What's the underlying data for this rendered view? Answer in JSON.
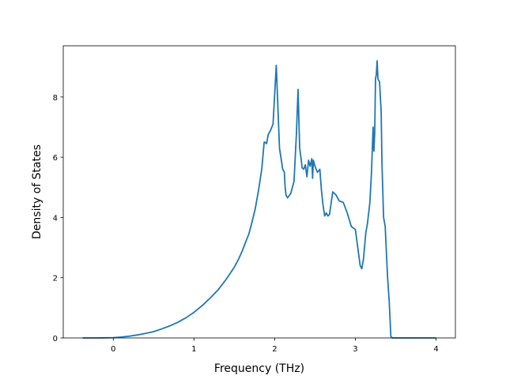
{
  "chart_data": {
    "type": "line",
    "xlabel": "Frequency (THz)",
    "ylabel": "Density of States",
    "xlim": [
      -0.62,
      4.24
    ],
    "ylim": [
      0,
      9.7
    ],
    "xticks": [
      0,
      1,
      2,
      3,
      4
    ],
    "yticks": [
      0,
      2,
      4,
      6,
      8
    ],
    "xtick_labels": [
      "0",
      "1",
      "2",
      "3",
      "4"
    ],
    "ytick_labels": [
      "0",
      "2",
      "4",
      "6",
      "8"
    ],
    "grid": false,
    "line_color": "#1f77b4",
    "series": [
      {
        "x": [
          -0.38,
          -0.2,
          0.0,
          0.1,
          0.2,
          0.3,
          0.4,
          0.5,
          0.6,
          0.7,
          0.8,
          0.9,
          1.0,
          1.1,
          1.2,
          1.3,
          1.4,
          1.5,
          1.55,
          1.6,
          1.65,
          1.68,
          1.72,
          1.76,
          1.8,
          1.84,
          1.86,
          1.87,
          1.88,
          1.9,
          1.92,
          1.95,
          1.98,
          2.02,
          2.06,
          2.1,
          2.12,
          2.13,
          2.14,
          2.16,
          2.2,
          2.24,
          2.27,
          2.29,
          2.31,
          2.33,
          2.34,
          2.36,
          2.38,
          2.4,
          2.42,
          2.44,
          2.46,
          2.47,
          2.48,
          2.5,
          2.53,
          2.56,
          2.58,
          2.6,
          2.62,
          2.64,
          2.66,
          2.68,
          2.72,
          2.76,
          2.8,
          2.85,
          2.9,
          2.95,
          3.0,
          3.03,
          3.06,
          3.08,
          3.1,
          3.13,
          3.15,
          3.18,
          3.2,
          3.22,
          3.23,
          3.24,
          3.25,
          3.26,
          3.27,
          3.28,
          3.3,
          3.32,
          3.33,
          3.34,
          3.35,
          3.37,
          3.38,
          3.4,
          3.42,
          3.44,
          3.46,
          3.48,
          3.5,
          3.52,
          3.55,
          3.58,
          3.6,
          3.62,
          3.64,
          3.66,
          3.7,
          4.0
        ],
        "y": [
          0.0,
          0.0,
          0.01,
          0.03,
          0.06,
          0.1,
          0.15,
          0.21,
          0.3,
          0.4,
          0.52,
          0.67,
          0.85,
          1.07,
          1.32,
          1.6,
          1.95,
          2.35,
          2.6,
          2.9,
          3.25,
          3.45,
          3.85,
          4.3,
          4.9,
          5.6,
          6.2,
          6.5,
          6.5,
          6.45,
          6.75,
          6.9,
          7.1,
          9.05,
          6.3,
          5.6,
          5.5,
          5.0,
          4.75,
          4.65,
          4.8,
          5.2,
          6.8,
          8.25,
          6.3,
          5.9,
          5.65,
          5.6,
          5.75,
          5.35,
          5.9,
          5.7,
          5.95,
          5.3,
          5.9,
          5.7,
          5.5,
          5.6,
          4.9,
          4.4,
          4.05,
          4.15,
          4.05,
          4.1,
          4.85,
          4.75,
          4.55,
          4.5,
          4.15,
          3.7,
          3.6,
          3.0,
          2.4,
          2.3,
          2.6,
          3.5,
          3.8,
          4.5,
          5.5,
          7.0,
          6.2,
          6.8,
          8.6,
          8.75,
          9.2,
          8.6,
          8.5,
          7.5,
          5.8,
          4.9,
          4.0,
          3.7,
          3.1,
          2.0,
          1.2,
          0.05,
          0.0,
          0.0,
          0.0,
          0.0,
          0.0,
          0.0,
          0.0,
          0.0,
          0.0,
          0.0,
          0.0,
          0.0
        ]
      }
    ]
  }
}
